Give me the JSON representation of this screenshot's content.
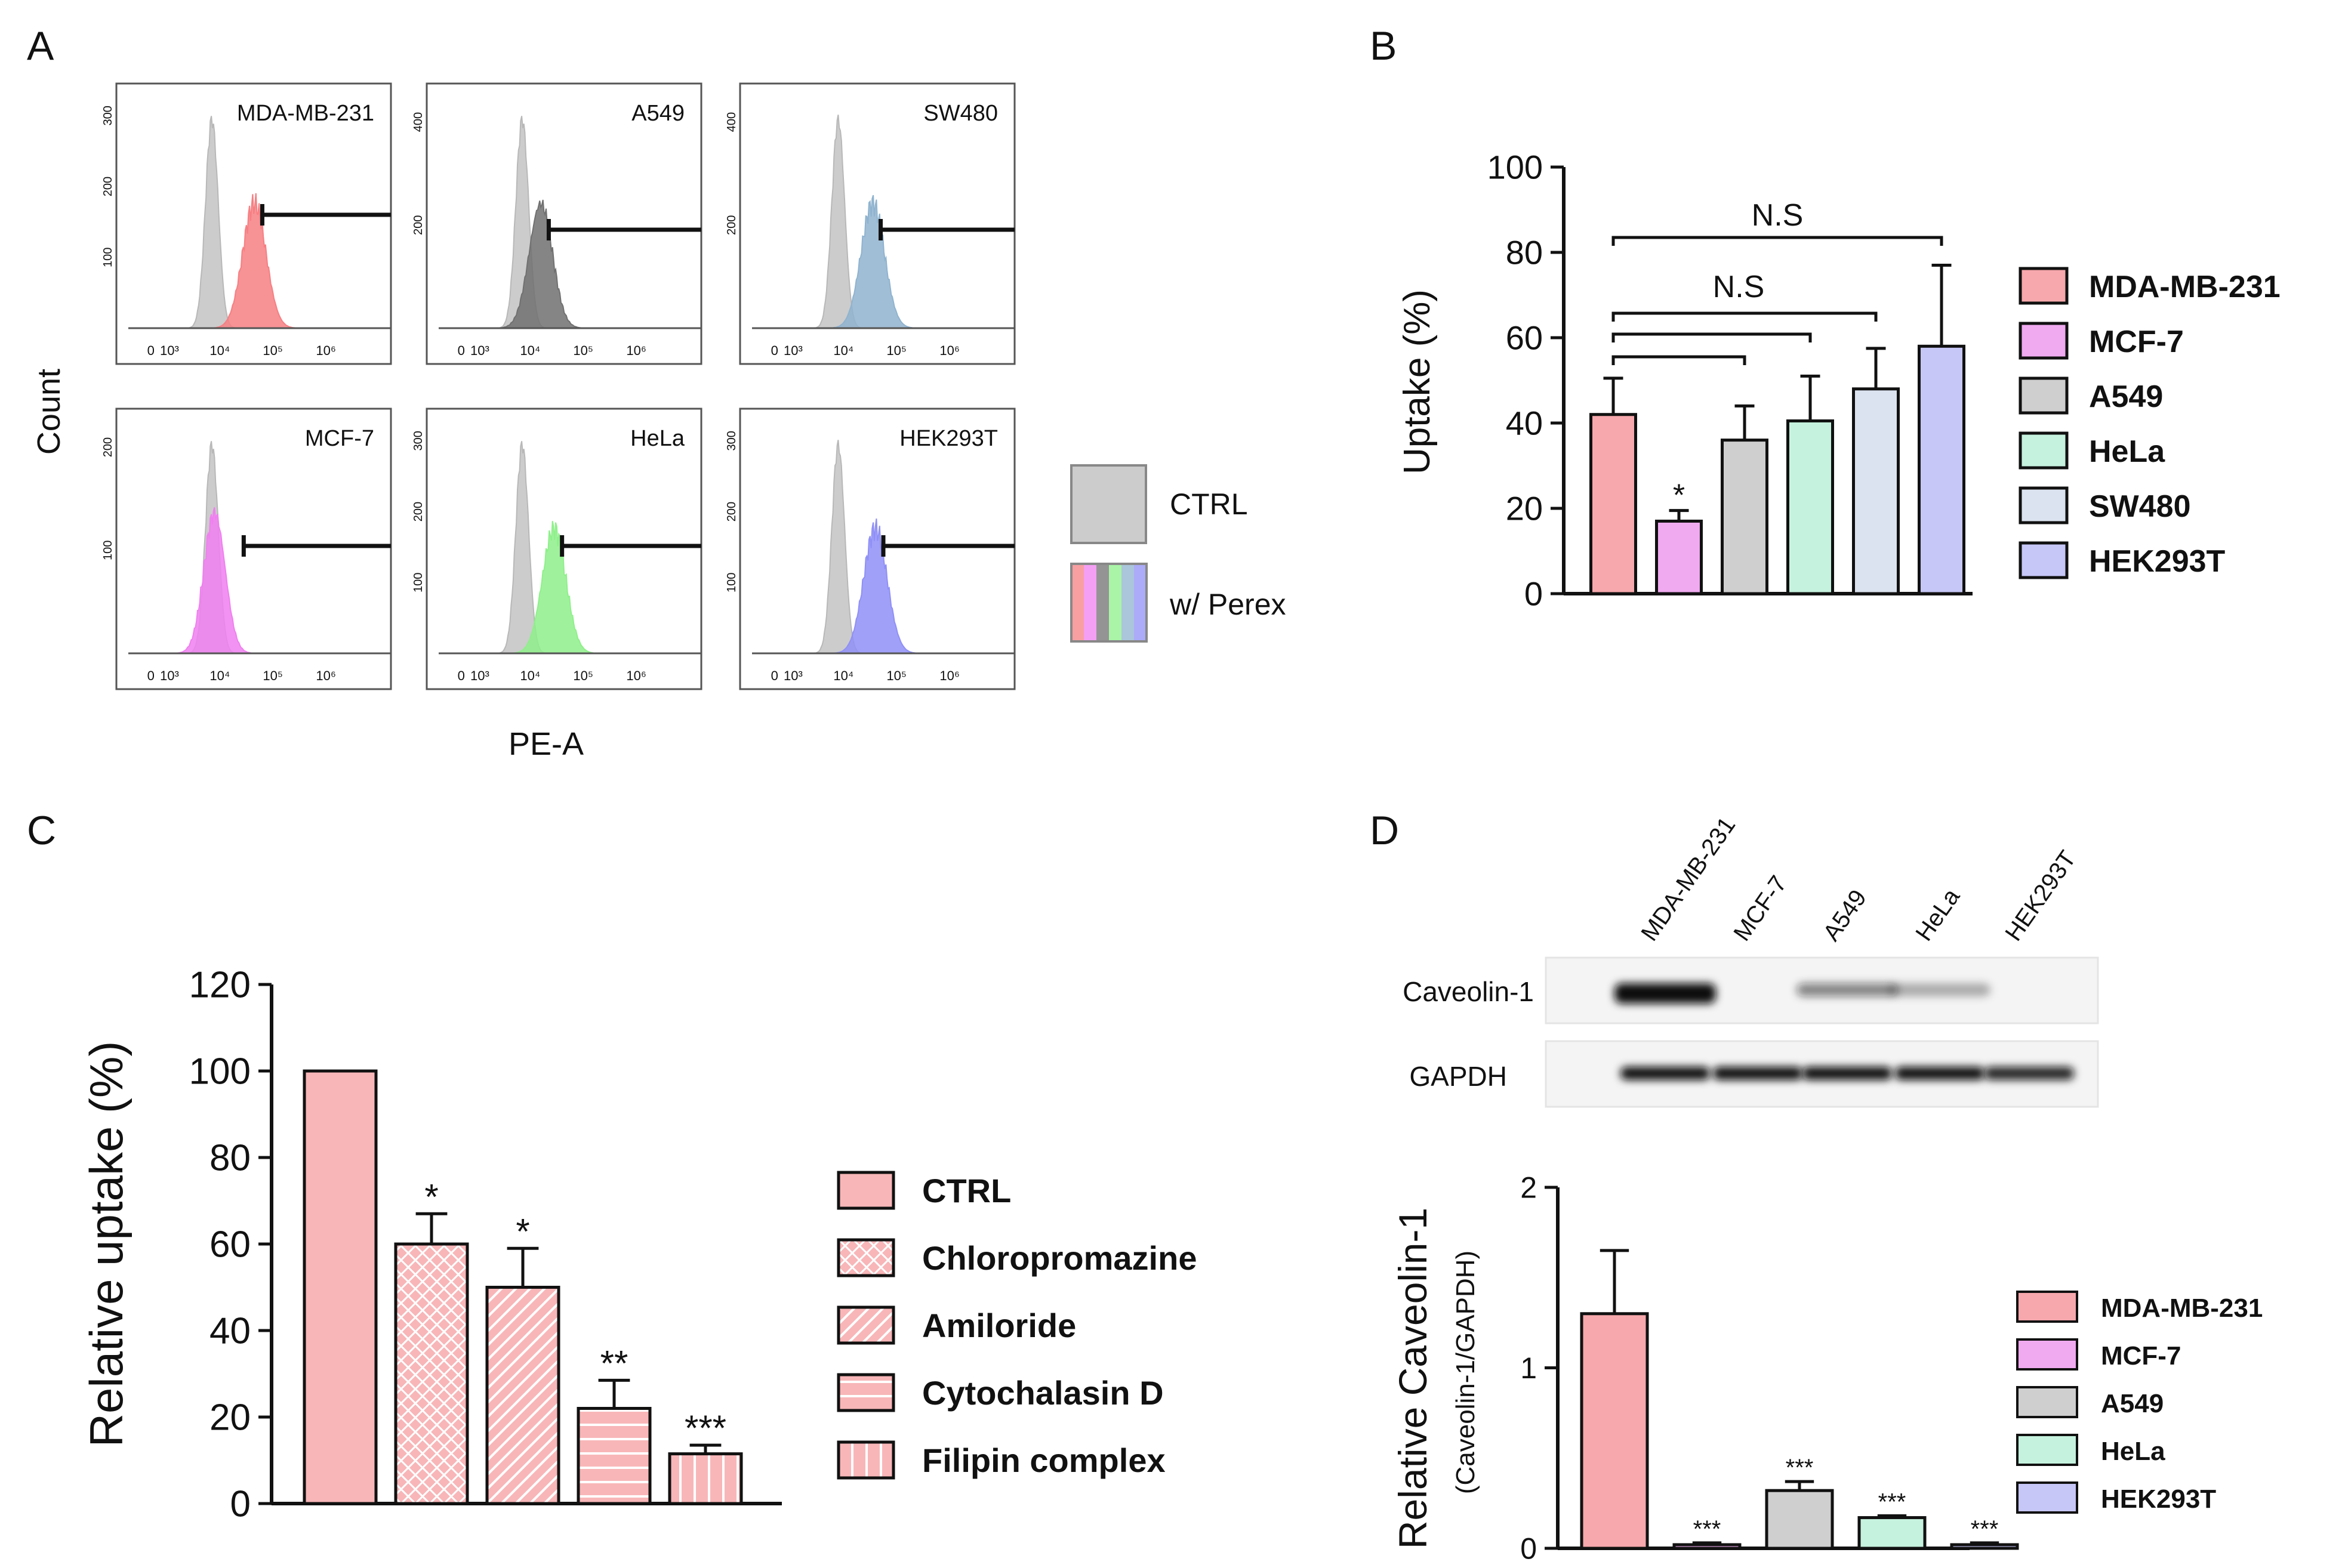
{
  "panel_labels": [
    "A",
    "B",
    "C",
    "D"
  ],
  "colors": {
    "MDA-MB-231": "#f7a8ac",
    "MCF-7": "#f0aaf0",
    "A549": "#cfcfcf",
    "HeLa": "#c5f2de",
    "SW480": "#dbe3f0",
    "HEK293T": "#c6c6f7",
    "ctrl_hist": "#cccccc",
    "hist_MDA-MB-231": "#f67f83",
    "hist_A549": "#707070",
    "hist_SW480": "#8fb3cf",
    "hist_MCF-7": "#f07ff0",
    "hist_HeLa": "#8ef08a",
    "hist_HEK293T": "#8f8ff7",
    "c_bar": "#f8b6b8"
  },
  "chart_data": [
    {
      "id": "A",
      "type": "histogram",
      "ylabel": "Count",
      "xlabel": "PE-A",
      "x_tick_labels": [
        "0",
        "10³",
        "10⁴",
        "10⁵",
        "10⁶"
      ],
      "panels": [
        {
          "name": "MDA-MB-231",
          "yticks": [
            "100",
            "200",
            "300"
          ],
          "ctrl_peak_log": 3.85,
          "treated_peak_log": 4.65
        },
        {
          "name": "A549",
          "yticks": [
            "200",
            "400"
          ],
          "ctrl_peak_log": 3.85,
          "treated_peak_log": 4.2
        },
        {
          "name": "SW480",
          "yticks": [
            "200",
            "400"
          ],
          "ctrl_peak_log": 3.9,
          "treated_peak_log": 4.55
        },
        {
          "name": "MCF-7",
          "yticks": [
            "100",
            "200"
          ],
          "ctrl_peak_log": 3.85,
          "treated_peak_log": 3.9
        },
        {
          "name": "HeLa",
          "yticks": [
            "100",
            "200",
            "300"
          ],
          "ctrl_peak_log": 3.85,
          "treated_peak_log": 4.45
        },
        {
          "name": "HEK293T",
          "yticks": [
            "100",
            "200",
            "300"
          ],
          "ctrl_peak_log": 3.9,
          "treated_peak_log": 4.6
        }
      ],
      "legend": [
        "CTRL",
        "w/ Perex"
      ]
    },
    {
      "id": "B",
      "type": "bar",
      "ylabel": "Uptake (%)",
      "ylim": [
        0,
        100
      ],
      "yticks": [
        0,
        20,
        40,
        60,
        80,
        100
      ],
      "categories": [
        "MDA-MB-231",
        "MCF-7",
        "A549",
        "HeLa",
        "SW480",
        "HEK293T"
      ],
      "values": [
        42,
        17,
        36,
        40.5,
        48,
        58
      ],
      "errors": [
        8.5,
        2.5,
        8,
        10.5,
        9.5,
        19
      ],
      "annotations": [
        "",
        "*",
        "",
        "",
        "",
        ""
      ],
      "significance": [
        "N.S",
        "N.S"
      ]
    },
    {
      "id": "C",
      "type": "bar",
      "ylabel": "Relative uptake (%)",
      "ylim": [
        0,
        120
      ],
      "yticks": [
        0,
        20,
        40,
        60,
        80,
        100,
        120
      ],
      "categories": [
        "CTRL",
        "Chloropromazine",
        "Amiloride",
        "Cytochalasin D",
        "Filipin complex"
      ],
      "patterns": [
        "solid",
        "dots",
        "diagonal",
        "horizontal",
        "vertical"
      ],
      "values": [
        100,
        60,
        50,
        22,
        11.5
      ],
      "errors": [
        0,
        7,
        9,
        6.5,
        2
      ],
      "annotations": [
        "",
        "*",
        "*",
        "**",
        "***"
      ]
    },
    {
      "id": "D",
      "type": "bar",
      "ylabel": "Relative Caveolin-1",
      "ylabel_sub": "(Caveolin-1/GAPDH)",
      "ylim": [
        0,
        2
      ],
      "yticks": [
        0,
        1,
        2
      ],
      "categories": [
        "MDA-MB-231",
        "MCF-7",
        "A549",
        "HeLa",
        "HEK293T"
      ],
      "values": [
        1.3,
        0.02,
        0.32,
        0.17,
        0.02
      ],
      "errors": [
        0.35,
        0.01,
        0.05,
        0.01,
        0.01
      ],
      "annotations": [
        "",
        "***",
        "***",
        "***",
        "***"
      ],
      "blot": {
        "lanes": [
          "MDA-MB-231",
          "MCF-7",
          "A549",
          "HeLa",
          "HEK293T"
        ],
        "rows": [
          "Caveolin-1",
          "GAPDH"
        ],
        "caveolin_intensity": [
          1.0,
          0.0,
          0.5,
          0.3,
          0.0
        ],
        "gapdh_intensity": [
          1.0,
          1.0,
          1.0,
          1.0,
          0.9
        ]
      }
    }
  ]
}
